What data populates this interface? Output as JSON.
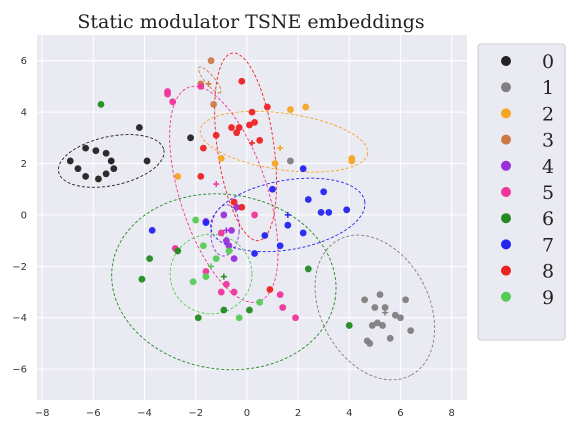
{
  "chart_data": {
    "type": "scatter",
    "title": "Static modulator TSNE embeddings",
    "xlabel": "",
    "ylabel": "",
    "xlim": [
      -8.2,
      8.6
    ],
    "ylim": [
      -7.2,
      7.0
    ],
    "xticks": [
      -8,
      -6,
      -4,
      -2,
      0,
      2,
      4,
      6,
      8
    ],
    "yticks": [
      -6,
      -4,
      -2,
      0,
      2,
      4,
      6
    ],
    "grid": true,
    "legend_position": "upper-right-outside",
    "series": [
      {
        "name": "0",
        "color": "#222222",
        "points": [
          [
            -6.9,
            2.1
          ],
          [
            -6.6,
            1.8
          ],
          [
            -6.3,
            2.6
          ],
          [
            -6.3,
            1.5
          ],
          [
            -5.9,
            2.5
          ],
          [
            -5.8,
            1.4
          ],
          [
            -5.5,
            2.4
          ],
          [
            -5.3,
            2.1
          ],
          [
            -5.5,
            1.6
          ],
          [
            -5.2,
            1.8
          ],
          [
            -3.9,
            2.1
          ],
          [
            -4.2,
            3.4
          ],
          [
            -2.2,
            3.0
          ]
        ],
        "centroid": [
          -5.3,
          2.1
        ],
        "ellipse": {
          "cx": -5.3,
          "cy": 2.1,
          "rx": 2.1,
          "ry": 0.95,
          "angle": 12
        }
      },
      {
        "name": "1",
        "color": "#808080",
        "points": [
          [
            4.6,
            -3.3
          ],
          [
            5.0,
            -3.6
          ],
          [
            5.2,
            -3.1
          ],
          [
            5.4,
            -3.6
          ],
          [
            5.1,
            -4.2
          ],
          [
            4.7,
            -4.9
          ],
          [
            4.8,
            -5.0
          ],
          [
            5.6,
            -4.8
          ],
          [
            5.8,
            -3.9
          ],
          [
            6.0,
            -4.0
          ],
          [
            6.2,
            -3.3
          ],
          [
            6.4,
            -4.5
          ],
          [
            4.9,
            -4.3
          ],
          [
            1.7,
            2.1
          ],
          [
            5.3,
            -4.3
          ]
        ],
        "centroid": [
          5.4,
          -3.8
        ],
        "ellipse": {
          "cx": 5.0,
          "cy": -3.6,
          "rx": 3.0,
          "ry": 2.1,
          "angle": -62
        }
      },
      {
        "name": "2",
        "color": "#f5a623",
        "points": [
          [
            -2.7,
            1.5
          ],
          [
            -1.0,
            2.2
          ],
          [
            1.1,
            2.0
          ],
          [
            1.7,
            4.1
          ],
          [
            2.3,
            4.2
          ],
          [
            4.1,
            2.2
          ],
          [
            4.1,
            2.1
          ]
        ],
        "centroid": [
          1.3,
          2.6
        ],
        "ellipse": {
          "cx": 1.45,
          "cy": 2.85,
          "rx": 3.3,
          "ry": 1.1,
          "angle": -8
        }
      },
      {
        "name": "3",
        "color": "#cc7a44",
        "points": [
          [
            -1.4,
            6.0
          ],
          [
            -1.3,
            4.3
          ],
          [
            -1.8,
            5.1
          ]
        ],
        "centroid": [
          -1.5,
          5.1
        ],
        "ellipse": {
          "cx": -1.45,
          "cy": 5.25,
          "rx": 0.65,
          "ry": 0.18,
          "angle": -50
        }
      },
      {
        "name": "4",
        "color": "#9b30d8",
        "points": [
          [
            -1.6,
            -0.25
          ],
          [
            -0.9,
            0.0
          ],
          [
            -0.6,
            -0.6
          ],
          [
            -0.4,
            0.3
          ],
          [
            -0.8,
            -1.0
          ],
          [
            -0.7,
            -1.2
          ],
          [
            -0.5,
            -1.7
          ]
        ],
        "centroid": [
          -0.8,
          -0.6
        ],
        "ellipse": {
          "cx": -0.85,
          "cy": -0.6,
          "rx": 0.55,
          "ry": 1.0,
          "angle": -5
        }
      },
      {
        "name": "5",
        "color": "#f0349a",
        "points": [
          [
            -3.1,
            4.8
          ],
          [
            -3.1,
            4.7
          ],
          [
            -2.9,
            4.4
          ],
          [
            -1.8,
            5.0
          ],
          [
            -2.8,
            -1.3
          ],
          [
            -1.6,
            -2.2
          ],
          [
            -1.0,
            -3.0
          ],
          [
            -0.8,
            -2.7
          ],
          [
            0.3,
            0.0
          ],
          [
            1.3,
            -3.1
          ],
          [
            1.4,
            -3.6
          ],
          [
            1.9,
            -4.0
          ],
          [
            -0.5,
            -3.0
          ],
          [
            -1.0,
            -0.7
          ]
        ],
        "centroid": [
          -1.2,
          1.2
        ],
        "ellipse": {
          "cx": -0.9,
          "cy": 0.8,
          "rx": 4.4,
          "ry": 1.7,
          "angle": -72
        }
      },
      {
        "name": "6",
        "color": "#228b22",
        "points": [
          [
            -5.7,
            4.3
          ],
          [
            -4.1,
            -2.5
          ],
          [
            -3.8,
            -1.7
          ],
          [
            -2.7,
            -1.4
          ],
          [
            -1.9,
            -4.0
          ],
          [
            -0.9,
            -3.7
          ],
          [
            0.1,
            -3.7
          ],
          [
            2.4,
            -2.1
          ],
          [
            4.0,
            -4.3
          ]
        ],
        "centroid": [
          -0.9,
          -2.4
        ],
        "ellipse": {
          "cx": -0.9,
          "cy": -2.6,
          "rx": 4.4,
          "ry": 3.4,
          "angle": -8
        }
      },
      {
        "name": "7",
        "color": "#2424f0",
        "points": [
          [
            -3.7,
            -0.6
          ],
          [
            -1.6,
            -0.3
          ],
          [
            0.3,
            -1.5
          ],
          [
            0.7,
            -0.8
          ],
          [
            1.0,
            1.0
          ],
          [
            1.3,
            -1.2
          ],
          [
            1.6,
            -0.4
          ],
          [
            2.2,
            1.8
          ],
          [
            2.2,
            -0.7
          ],
          [
            2.4,
            0.6
          ],
          [
            2.9,
            0.1
          ],
          [
            3.0,
            0.9
          ],
          [
            3.2,
            0.1
          ],
          [
            3.9,
            0.2
          ]
        ],
        "centroid": [
          1.6,
          0.0
        ],
        "ellipse": {
          "cx": 1.6,
          "cy": 0.0,
          "rx": 3.05,
          "ry": 1.35,
          "angle": 10
        }
      },
      {
        "name": "8",
        "color": "#ee2222",
        "points": [
          [
            -0.2,
            5.2
          ],
          [
            -0.6,
            3.4
          ],
          [
            -0.3,
            3.4
          ],
          [
            -0.4,
            3.2
          ],
          [
            0.1,
            3.5
          ],
          [
            0.2,
            4.0
          ],
          [
            0.3,
            3.6
          ],
          [
            0.5,
            2.9
          ],
          [
            0.8,
            4.2
          ],
          [
            -1.2,
            3.1
          ],
          [
            -1.7,
            2.6
          ],
          [
            -1.8,
            1.5
          ],
          [
            -0.5,
            0.5
          ],
          [
            -0.2,
            0.3
          ],
          [
            0.9,
            -2.9
          ]
        ],
        "centroid": [
          0.2,
          2.8
        ],
        "ellipse": {
          "cx": -0.05,
          "cy": 2.65,
          "rx": 3.7,
          "ry": 1.1,
          "angle": -82
        }
      },
      {
        "name": "9",
        "color": "#55cc55",
        "points": [
          [
            -2.0,
            -0.2
          ],
          [
            -1.7,
            -1.2
          ],
          [
            -1.2,
            -1.7
          ],
          [
            -1.6,
            -2.4
          ],
          [
            -2.1,
            -2.6
          ],
          [
            -0.3,
            -4.0
          ],
          [
            0.5,
            -3.4
          ],
          [
            -0.7,
            -1.4
          ]
        ],
        "centroid": [
          -1.4,
          -2.0
        ],
        "ellipse": {
          "cx": -1.4,
          "cy": -2.3,
          "rx": 1.6,
          "ry": 1.55,
          "angle": 0
        }
      }
    ]
  }
}
